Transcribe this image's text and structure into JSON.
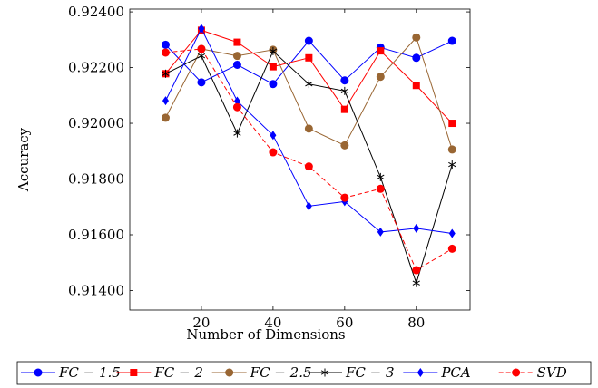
{
  "chart_data": {
    "type": "line",
    "xlabel": "Number of Dimensions",
    "ylabel": "Accuracy",
    "x": [
      10,
      20,
      30,
      40,
      50,
      60,
      70,
      80,
      90
    ],
    "xlim": [
      0,
      95
    ],
    "ylim": [
      0.9133,
      0.9241
    ],
    "x_ticks": [
      20,
      40,
      60,
      80
    ],
    "x_tick_labels": [
      "20",
      "40",
      "60",
      "80"
    ],
    "y_ticks": [
      0.914,
      0.916,
      0.918,
      0.92,
      0.922,
      0.924
    ],
    "y_tick_labels": [
      "0.91400",
      "0.91600",
      "0.91800",
      "0.92000",
      "0.92200",
      "0.92400"
    ],
    "grid": false,
    "legend_position": "bottom",
    "series": [
      {
        "name": "FC − 1.5",
        "color": "#0000ff",
        "marker": "circle",
        "dash": "solid",
        "values": [
          0.92282,
          0.92147,
          0.9221,
          0.92141,
          0.92296,
          0.92154,
          0.92272,
          0.92235,
          0.92296
        ]
      },
      {
        "name": "FC − 2",
        "color": "#ff0000",
        "marker": "square",
        "dash": "solid",
        "values": [
          0.92178,
          0.92334,
          0.92291,
          0.92203,
          0.92235,
          0.9205,
          0.9226,
          0.92136,
          0.92
        ]
      },
      {
        "name": "FC − 2.5",
        "color": "#996633",
        "marker": "circle",
        "dash": "solid",
        "values": [
          0.9202,
          0.92267,
          0.92242,
          0.92264,
          0.91981,
          0.91921,
          0.92167,
          0.92308,
          0.91906
        ]
      },
      {
        "name": "FC − 3",
        "color": "#000000",
        "marker": "star",
        "dash": "solid",
        "values": [
          0.92178,
          0.92242,
          0.91964,
          0.92259,
          0.92141,
          0.92116,
          0.91807,
          0.91427,
          0.91852
        ]
      },
      {
        "name": "PCA",
        "color": "#0000ff",
        "marker": "diamond",
        "dash": "solid",
        "values": [
          0.92081,
          0.9234,
          0.9208,
          0.91957,
          0.91703,
          0.91719,
          0.9161,
          0.91623,
          0.91605
        ]
      },
      {
        "name": "SVD",
        "color": "#ff0000",
        "marker": "circle",
        "dash": "dashed",
        "values": [
          0.92254,
          0.92267,
          0.92058,
          0.91896,
          0.91845,
          0.91733,
          0.91765,
          0.91473,
          0.9155
        ]
      }
    ]
  }
}
